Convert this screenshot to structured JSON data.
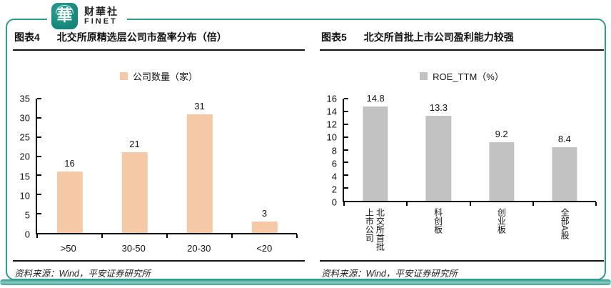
{
  "logo": {
    "seal_character": "華",
    "name": "财華社",
    "subtitle": "FINET"
  },
  "colors": {
    "accent_teal": "#2e9c90",
    "bar_peach": "#f6c9a6",
    "bar_gray": "#c2c2c2"
  },
  "panels": [
    {
      "label": "图表4",
      "title": "北交所原精选层公司市盈率分布（倍）",
      "source": "资料来源：Wind，平安证券研究所"
    },
    {
      "label": "图表5",
      "title": "北交所首批上市公司盈利能力较强",
      "source": "资料来源：Wind，平安证券研究所"
    }
  ],
  "chart_data": [
    {
      "type": "bar",
      "title": "北交所原精选层公司市盈率分布（倍）",
      "legend": "公司数量（家）",
      "legend_position": "top",
      "categories": [
        ">50",
        "30-50",
        "20-30",
        "<20"
      ],
      "values": [
        16,
        21,
        31,
        3
      ],
      "xlabel": "",
      "ylabel": "",
      "ylim": [
        0,
        35
      ],
      "ytick_step": 5,
      "grid": false,
      "bar_color": "#f6c9a6",
      "xlabels_vertical": false
    },
    {
      "type": "bar",
      "title": "北交所首批上市公司盈利能力较强",
      "legend": "ROE_TTM（%）",
      "legend_position": "top",
      "categories": [
        "北交所首批\n上市公司",
        "科创板",
        "创业板",
        "全部A股"
      ],
      "values": [
        14.8,
        13.3,
        9.2,
        8.4
      ],
      "xlabel": "",
      "ylabel": "",
      "ylim": [
        0,
        16
      ],
      "ytick_step": 2,
      "grid": false,
      "bar_color": "#c2c2c2",
      "xlabels_vertical": true
    }
  ]
}
